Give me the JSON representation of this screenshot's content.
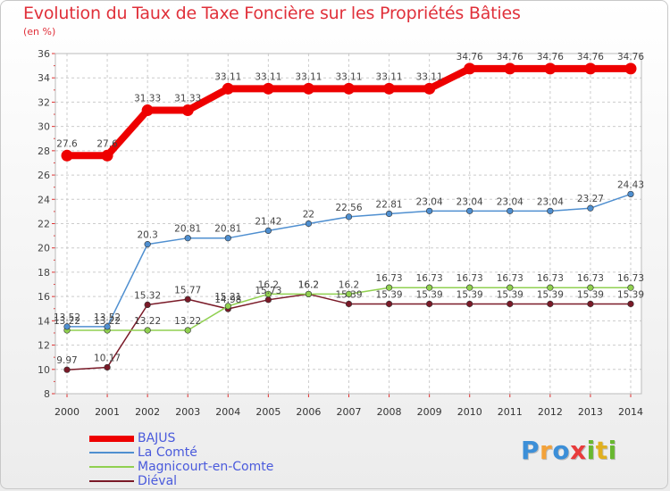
{
  "colors": {
    "title": "#e0303a",
    "legend_text": "#4a5adc"
  },
  "chart_data": {
    "type": "line",
    "title": "Evolution du Taux de Taxe Foncière sur les Propriétés Bâties",
    "ylabel": "(en %)",
    "xlabel": "",
    "ylim": [
      8,
      36
    ],
    "yticks": [
      "8",
      "10",
      "12",
      "14",
      "16",
      "18",
      "20",
      "22",
      "24",
      "26",
      "28",
      "30",
      "32",
      "34",
      "36"
    ],
    "categories": [
      "2000",
      "2001",
      "2002",
      "2003",
      "2004",
      "2005",
      "2006",
      "2007",
      "2008",
      "2009",
      "2010",
      "2011",
      "2012",
      "2013",
      "2014"
    ],
    "series": [
      {
        "name": "BAJUS",
        "color": "#ee0000",
        "values": [
          27.6,
          27.6,
          31.33,
          31.33,
          33.11,
          33.11,
          33.11,
          33.11,
          33.11,
          33.11,
          34.76,
          34.76,
          34.76,
          34.76,
          34.76
        ],
        "labels": [
          "27.6",
          "27.6",
          "31.33",
          "31.33",
          "33.11",
          "33.11",
          "33.11",
          "33.11",
          "33.11",
          "33.11",
          "34.76",
          "34.76",
          "34.76",
          "34.76",
          "34.76"
        ]
      },
      {
        "name": "La Comté",
        "color": "#4f8fd0",
        "values": [
          13.52,
          13.52,
          20.3,
          20.81,
          20.81,
          21.42,
          22,
          22.56,
          22.81,
          23.04,
          23.04,
          23.04,
          23.04,
          23.27,
          24.43
        ],
        "labels": [
          "13.52",
          "13.52",
          "20.3",
          "20.81",
          "20.81",
          "21.42",
          "22",
          "22.56",
          "22.81",
          "23.04",
          "23.04",
          "23.04",
          "23.04",
          "23.27",
          "24.43"
        ]
      },
      {
        "name": "Magnicourt-en-Comte",
        "color": "#90d050",
        "values": [
          13.22,
          13.22,
          13.22,
          13.22,
          15.21,
          16.2,
          16.2,
          16.2,
          16.73,
          16.73,
          16.73,
          16.73,
          16.73,
          16.73,
          16.73
        ],
        "labels": [
          "13.22",
          "13.22",
          "13.22",
          "13.22",
          "15.21",
          "16.2",
          "16.2",
          "16.2",
          "16.73",
          "16.73",
          "16.73",
          "16.73",
          "16.73",
          "16.73",
          "16.73"
        ]
      },
      {
        "name": "Diéval",
        "color": "#7a1a28",
        "values": [
          9.97,
          10.17,
          15.32,
          15.77,
          14.98,
          15.73,
          16.2,
          15.39,
          15.39,
          15.39,
          15.39,
          15.39,
          15.39,
          15.39,
          15.39
        ],
        "labels": [
          "9.97",
          "10.17",
          "15.32",
          "15.77",
          "14.98",
          "15.73",
          "16.2",
          "15.39",
          "15.39",
          "15.39",
          "15.39",
          "15.39",
          "15.39",
          "15.39",
          "15.39"
        ]
      }
    ]
  },
  "logo": {
    "letters": [
      "P",
      "r",
      "o",
      "x",
      "i",
      "t",
      "i"
    ],
    "colors": [
      "#3c8fd8",
      "#f3a23a",
      "#3c8fd8",
      "#e83c3c",
      "#68b830",
      "#e0b020",
      "#68b830"
    ]
  }
}
